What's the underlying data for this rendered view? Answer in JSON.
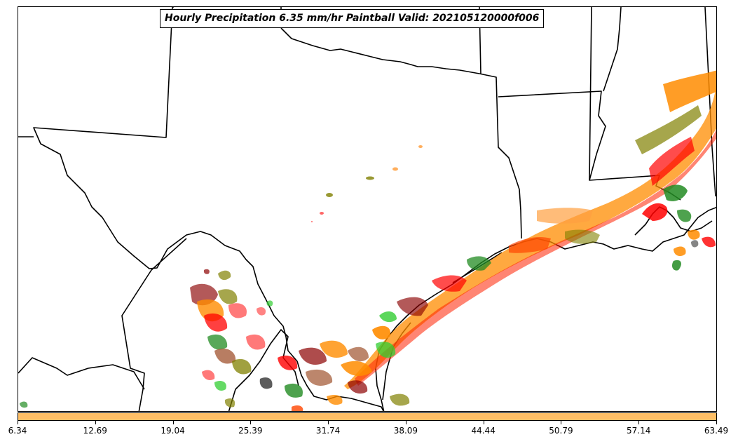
{
  "title": "Hourly Precipitation 6.35 mm/hr Paintball Valid: 202105120000f006",
  "colorbar": {
    "color": "#ffbf66",
    "ticks": [
      "6.34",
      "12.69",
      "19.04",
      "25.39",
      "31.74",
      "38.09",
      "44.44",
      "50.79",
      "57.14",
      "63.49"
    ]
  },
  "paintball_colors": [
    "#ff8c00",
    "#ff0000",
    "#228b22",
    "#32cd32",
    "#8b0000",
    "#808000",
    "#ffa040",
    "#333333",
    "#a0522d"
  ],
  "map": {
    "region": "Texas and Gulf Coast",
    "features": [
      "state borders",
      "Mexico border",
      "coastline"
    ]
  }
}
